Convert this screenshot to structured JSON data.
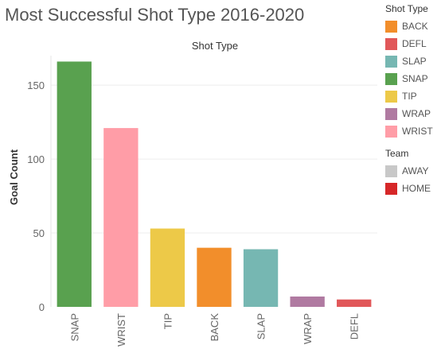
{
  "title": "Most Successful Shot Type 2016-2020",
  "legends": [
    {
      "title": "Shot Type",
      "items": [
        {
          "label": "BACK",
          "color": "#f28e2b"
        },
        {
          "label": "DEFL",
          "color": "#e15759"
        },
        {
          "label": "SLAP",
          "color": "#76b7b2"
        },
        {
          "label": "SNAP",
          "color": "#59a14f"
        },
        {
          "label": "TIP",
          "color": "#edc948"
        },
        {
          "label": "WRAP",
          "color": "#b07aa1"
        },
        {
          "label": "WRIST",
          "color": "#ff9da7"
        }
      ]
    },
    {
      "title": "Team",
      "items": [
        {
          "label": "AWAY",
          "color": "#c8c8c8"
        },
        {
          "label": "HOME",
          "color": "#d62728"
        }
      ]
    }
  ],
  "chart_data": {
    "type": "bar",
    "title": "",
    "column_header": "Shot Type",
    "xlabel": "",
    "ylabel": "Goal Count",
    "categories": [
      "SNAP",
      "WRIST",
      "TIP",
      "BACK",
      "SLAP",
      "WRAP",
      "DEFL"
    ],
    "values": [
      166,
      121,
      53,
      40,
      39,
      7,
      5
    ],
    "colors": [
      "#59a14f",
      "#ff9da7",
      "#edc948",
      "#f28e2b",
      "#76b7b2",
      "#b07aa1",
      "#e15759"
    ],
    "yticks": [
      0,
      50,
      100,
      150
    ],
    "ylim": [
      0,
      170
    ],
    "grid": true,
    "legend_position": "right"
  }
}
